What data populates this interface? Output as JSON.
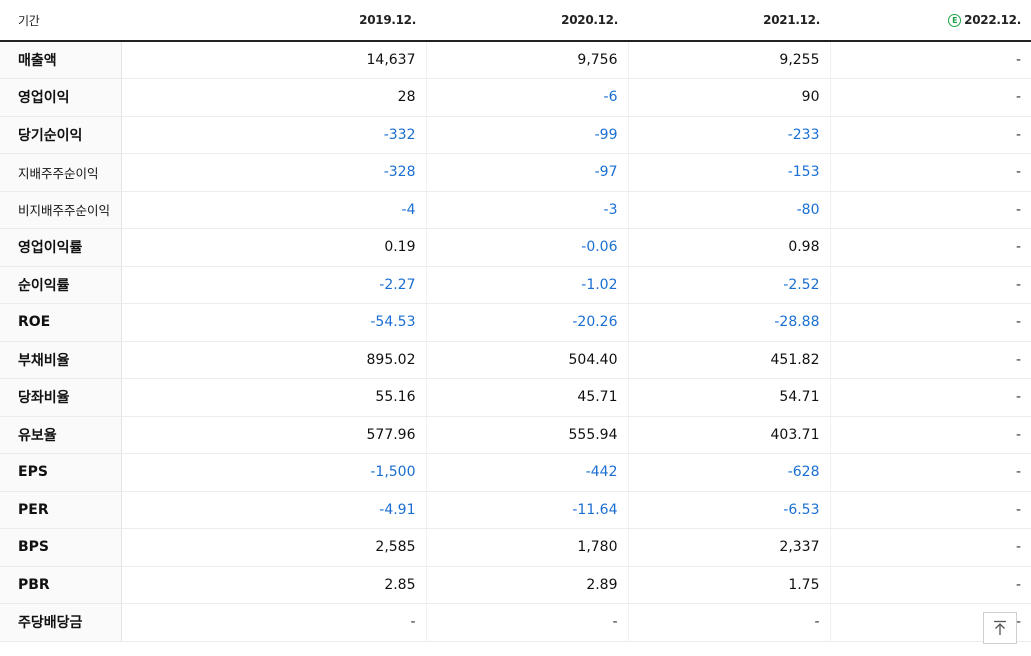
{
  "header": {
    "period_label": "기간",
    "columns": [
      "2019.12.",
      "2020.12.",
      "2021.12.",
      "2022.12."
    ],
    "estimate_badge": "E"
  },
  "rows": [
    {
      "label": "매출액",
      "small": false,
      "group_start": false,
      "values": [
        "14,637",
        "9,756",
        "9,255",
        "-"
      ]
    },
    {
      "label": "영업이익",
      "small": false,
      "group_start": false,
      "values": [
        "28",
        "-6",
        "90",
        "-"
      ]
    },
    {
      "label": "당기순이익",
      "small": false,
      "group_start": false,
      "values": [
        "-332",
        "-99",
        "-233",
        "-"
      ]
    },
    {
      "label": "지배주주순이익",
      "small": true,
      "group_start": false,
      "values": [
        "-328",
        "-97",
        "-153",
        "-"
      ]
    },
    {
      "label": "비지배주주순이익",
      "small": true,
      "group_start": false,
      "values": [
        "-4",
        "-3",
        "-80",
        "-"
      ]
    },
    {
      "label": "영업이익률",
      "small": false,
      "group_start": true,
      "values": [
        "0.19",
        "-0.06",
        "0.98",
        "-"
      ]
    },
    {
      "label": "순이익률",
      "small": false,
      "group_start": false,
      "values": [
        "-2.27",
        "-1.02",
        "-2.52",
        "-"
      ]
    },
    {
      "label": "ROE",
      "small": false,
      "group_start": false,
      "values": [
        "-54.53",
        "-20.26",
        "-28.88",
        "-"
      ]
    },
    {
      "label": "부채비율",
      "small": false,
      "group_start": true,
      "values": [
        "895.02",
        "504.40",
        "451.82",
        "-"
      ]
    },
    {
      "label": "당좌비율",
      "small": false,
      "group_start": false,
      "values": [
        "55.16",
        "45.71",
        "54.71",
        "-"
      ]
    },
    {
      "label": "유보율",
      "small": false,
      "group_start": false,
      "values": [
        "577.96",
        "555.94",
        "403.71",
        "-"
      ]
    },
    {
      "label": "EPS",
      "small": false,
      "group_start": true,
      "values": [
        "-1,500",
        "-442",
        "-628",
        "-"
      ]
    },
    {
      "label": "PER",
      "small": false,
      "group_start": false,
      "values": [
        "-4.91",
        "-11.64",
        "-6.53",
        "-"
      ]
    },
    {
      "label": "BPS",
      "small": false,
      "group_start": false,
      "values": [
        "2,585",
        "1,780",
        "2,337",
        "-"
      ]
    },
    {
      "label": "PBR",
      "small": false,
      "group_start": false,
      "values": [
        "2.85",
        "2.89",
        "1.75",
        "-"
      ]
    },
    {
      "label": "주당배당금",
      "small": false,
      "group_start": true,
      "values": [
        "-",
        "-",
        "-",
        "-"
      ]
    }
  ],
  "colors": {
    "negative": "#1a6fd1",
    "estimate": "#1fa34a"
  },
  "scroll_top_icon": "arrow-up-to-top-icon"
}
